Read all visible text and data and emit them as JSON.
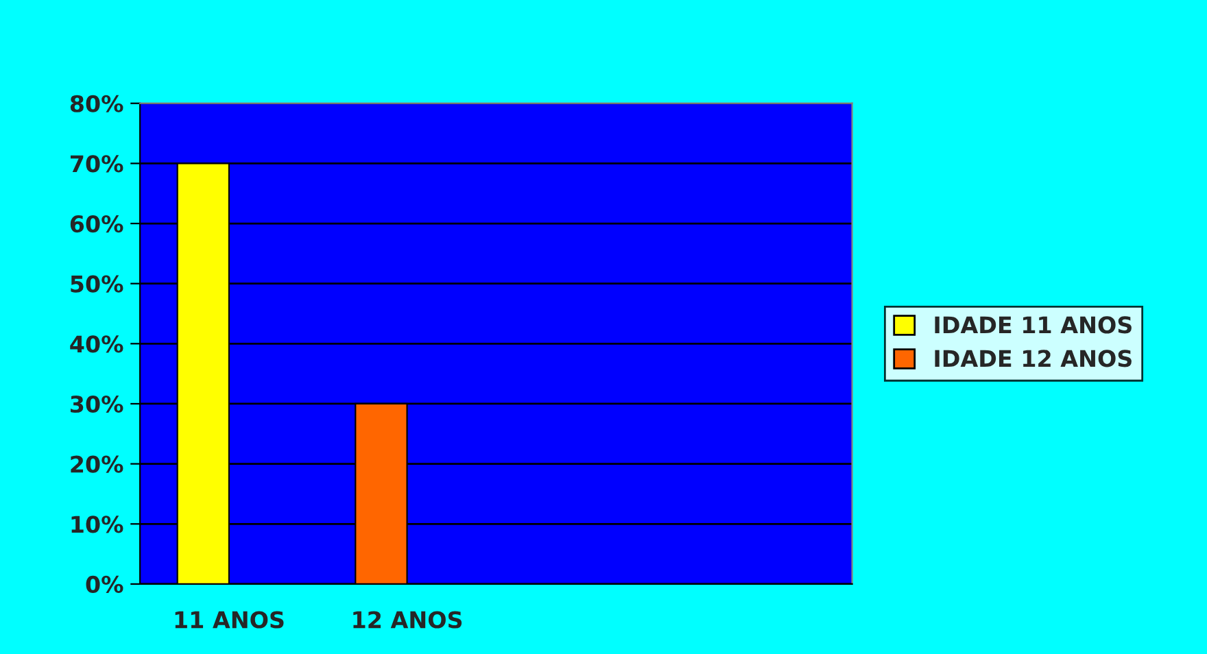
{
  "chart_data": {
    "type": "bar",
    "categories": [
      "11 ANOS",
      "12 ANOS",
      null,
      null
    ],
    "series": [
      {
        "name": "IDADE 11 ANOS",
        "color": "#ffff00",
        "values": [
          70,
          null,
          null,
          null
        ]
      },
      {
        "name": "IDADE 12 ANOS",
        "color": "#ff6600",
        "values": [
          null,
          30,
          null,
          null
        ]
      }
    ],
    "ylim": [
      0,
      80
    ],
    "yticks": [
      {
        "value": 0,
        "label": "0%"
      },
      {
        "value": 10,
        "label": "10%"
      },
      {
        "value": 20,
        "label": "20%"
      },
      {
        "value": 30,
        "label": "30%"
      },
      {
        "value": 40,
        "label": "40%"
      },
      {
        "value": 50,
        "label": "50%"
      },
      {
        "value": 60,
        "label": "60%"
      },
      {
        "value": 70,
        "label": "70%"
      },
      {
        "value": 80,
        "label": "80%"
      }
    ],
    "grid": "y",
    "legend": "right"
  }
}
